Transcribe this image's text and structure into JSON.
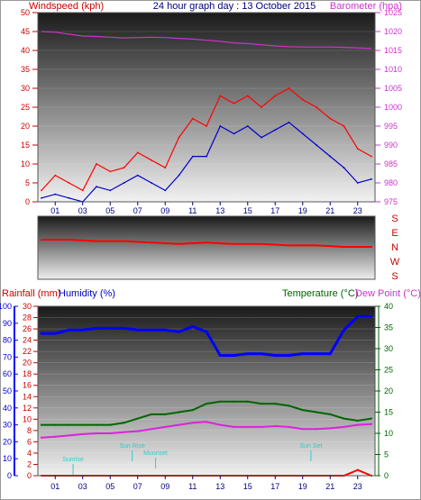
{
  "header": {
    "left_label": "Windspeed (kph)",
    "center_label": "24 hour graph day : 13 October 2015",
    "right_label": "Barometer (hpa)"
  },
  "colors": {
    "wind_max": "#ff0000",
    "wind_avg": "#0000cc",
    "barometer": "#cc33cc",
    "direction": "#ff0000",
    "humidity": "#0000ff",
    "temperature": "#006600",
    "dewpoint": "#dd22dd",
    "rainfall": "#ff0000",
    "sun_events": "#33cccc"
  },
  "direction_labels": [
    "S",
    "E",
    "N",
    "W",
    "S"
  ],
  "bottom_header": {
    "rainfall": "Rainfall (mm)",
    "humidity": "Humidity (%)",
    "temperature": "Temperature (°C)",
    "dewpoint": "Dew Point (°C)"
  },
  "events": [
    "Sunrise",
    "Sun Rise",
    "Moonset",
    "Sun Set"
  ],
  "chart_data": [
    {
      "type": "line",
      "panel": "wind_barometer",
      "x_tick_labels": [
        "01",
        "03",
        "05",
        "07",
        "09",
        "11",
        "13",
        "15",
        "17",
        "19",
        "21",
        "23"
      ],
      "y_left_ticks": [
        0,
        5,
        10,
        15,
        20,
        25,
        30,
        35,
        40,
        45,
        50
      ],
      "y_right_ticks": [
        975,
        980,
        985,
        990,
        995,
        1000,
        1005,
        1010,
        1015,
        1020,
        1025
      ],
      "ylim_left": [
        0,
        50
      ],
      "ylim_right": [
        975,
        1025
      ],
      "x_hours": [
        0,
        1,
        2,
        3,
        4,
        5,
        6,
        7,
        8,
        9,
        10,
        11,
        12,
        13,
        14,
        15,
        16,
        17,
        18,
        19,
        20,
        21,
        22,
        23,
        24
      ],
      "series": [
        {
          "name": "Windspeed (kph)",
          "axis": "left",
          "values": [
            3,
            7,
            5,
            3,
            10,
            8,
            9,
            13,
            11,
            9,
            17,
            22,
            20,
            28,
            26,
            28,
            25,
            28,
            30,
            27,
            25,
            22,
            20,
            14,
            12
          ]
        },
        {
          "name": "Barometer (hpa)",
          "axis": "right",
          "values": [
            1020,
            1019.8,
            1019.3,
            1018.8,
            1018.7,
            1018.5,
            1018.3,
            1018.4,
            1018.5,
            1018.4,
            1018.2,
            1018,
            1017.7,
            1017.4,
            1017,
            1016.8,
            1016.5,
            1016.2,
            1016,
            1015.9,
            1015.9,
            1015.9,
            1015.8,
            1015.7,
            1015.5
          ]
        },
        {
          "values": [
            1,
            2,
            1,
            0,
            4,
            3,
            5,
            7,
            5,
            3,
            7,
            12,
            12,
            20,
            18,
            20,
            17,
            19,
            21,
            18,
            15,
            12,
            9,
            5,
            6
          ]
        }
      ]
    },
    {
      "type": "line",
      "panel": "wind_direction",
      "y_ticks": [
        "S",
        "E",
        "N",
        "W",
        "S"
      ],
      "x_hours": [
        0,
        2,
        4,
        6,
        8,
        10,
        12,
        14,
        16,
        18,
        20,
        22,
        24
      ],
      "series": [
        {
          "values": [
            15,
            15,
            16,
            16,
            17,
            18,
            17,
            18,
            18,
            19,
            19,
            20,
            20
          ]
        }
      ]
    },
    {
      "type": "line",
      "panel": "temperature_humidity_rain",
      "x_tick_labels": [
        "01",
        "03",
        "05",
        "07",
        "09",
        "11",
        "13",
        "15",
        "17",
        "19",
        "21",
        "23"
      ],
      "y_rain_ticks": [
        0,
        2,
        4,
        6,
        8,
        10,
        12,
        14,
        16,
        18,
        20,
        22,
        24,
        26,
        28,
        30
      ],
      "y_humidity_ticks": [
        0,
        10,
        20,
        30,
        40,
        50,
        60,
        70,
        80,
        90,
        100
      ],
      "y_temp_ticks": [
        0,
        5,
        10,
        15,
        20,
        25,
        30,
        35,
        40
      ],
      "ylim_humidity": [
        0,
        100
      ],
      "ylim_temp": [
        0,
        40
      ],
      "ylim_rain": [
        0,
        30
      ],
      "x_hours": [
        0,
        1,
        2,
        3,
        4,
        5,
        6,
        7,
        8,
        9,
        10,
        11,
        12,
        13,
        14,
        15,
        16,
        17,
        18,
        19,
        20,
        21,
        22,
        23,
        24
      ],
      "series": [
        {
          "name": "Humidity (%)",
          "axis": "humidity",
          "values": [
            84,
            84,
            86,
            86,
            87,
            87,
            87,
            86,
            86,
            86,
            85,
            88,
            85,
            71,
            71,
            72,
            72,
            71,
            71,
            72,
            72,
            72,
            86,
            94,
            94
          ]
        },
        {
          "name": "Temperature (°C)",
          "axis": "temp",
          "values": [
            12,
            12,
            12,
            12,
            12,
            12,
            12.5,
            13.5,
            14.5,
            14.5,
            15,
            15.5,
            17,
            17.5,
            17.5,
            17.5,
            17,
            17,
            16.5,
            15.5,
            15,
            14.5,
            13.5,
            13,
            13.5
          ]
        },
        {
          "name": "Dew Point (°C)",
          "axis": "temp",
          "values": [
            9,
            9.2,
            9.5,
            9.8,
            10,
            10,
            10.3,
            10.5,
            11,
            11.5,
            12,
            12.5,
            12.7,
            12,
            11.5,
            11.5,
            11.5,
            11.7,
            11.5,
            11,
            11,
            11.2,
            11.5,
            12,
            12.2
          ]
        },
        {
          "name": "Rainfall (mm)",
          "axis": "rain",
          "values": [
            0,
            0,
            0,
            0,
            0,
            0,
            0,
            0,
            0,
            0,
            0,
            0,
            0,
            0,
            0,
            0,
            0,
            0,
            0,
            0,
            0,
            0,
            0,
            1,
            0
          ]
        }
      ],
      "event_hours": [
        2.3,
        6.6,
        8.3,
        19.6
      ]
    }
  ]
}
